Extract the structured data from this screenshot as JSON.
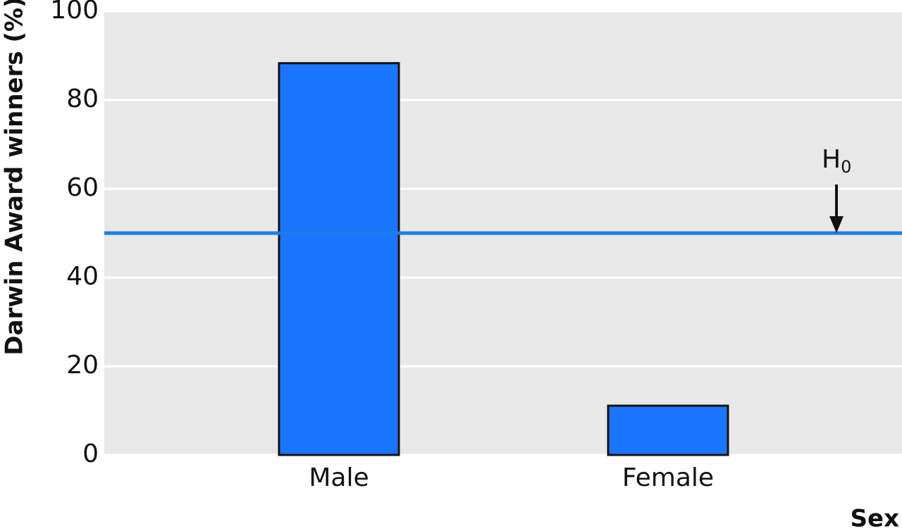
{
  "chart_data": {
    "type": "bar",
    "categories": [
      "Male",
      "Female"
    ],
    "values": [
      88.3,
      11.1
    ],
    "color": "#1a75ff",
    "ylim": [
      0,
      100
    ],
    "yticks": [
      0,
      20,
      40,
      60,
      80,
      100
    ],
    "grid": true,
    "y_label": "Darwin Award winners (%)",
    "x_label": "Sex",
    "reference_line": {
      "value": 50,
      "color": "#1e7be8",
      "label": "H",
      "label_subscript": "0"
    }
  }
}
